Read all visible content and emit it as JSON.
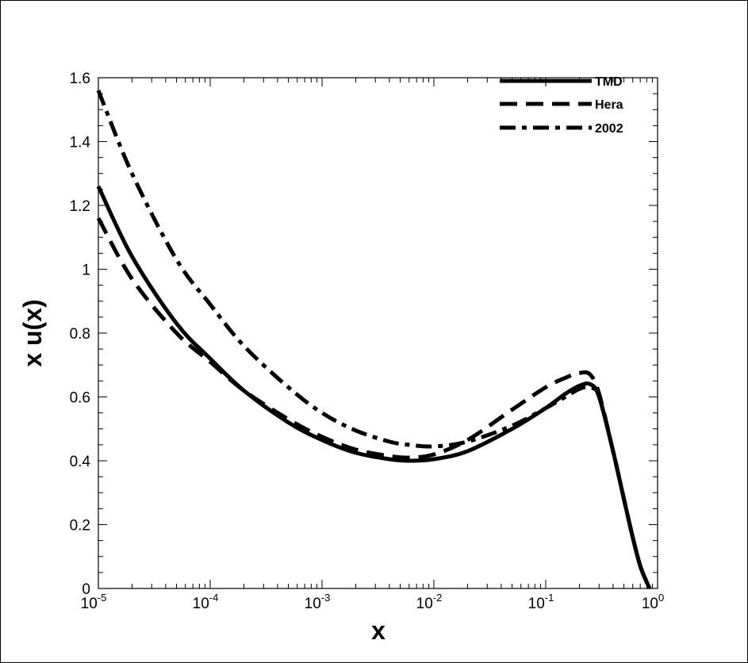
{
  "chart_data": {
    "type": "line",
    "xlabel": "x",
    "ylabel": "x u(x)",
    "x_scale": "log",
    "xlim": [
      1e-05,
      1
    ],
    "ylim": [
      0,
      1.6
    ],
    "x_ticks": [
      {
        "base": "10",
        "exp": "-5",
        "value": 1e-05
      },
      {
        "base": "10",
        "exp": "-4",
        "value": 0.0001
      },
      {
        "base": "10",
        "exp": "-3",
        "value": 0.001
      },
      {
        "base": "10",
        "exp": "-2",
        "value": 0.01
      },
      {
        "base": "10",
        "exp": "-1",
        "value": 0.1
      },
      {
        "base": "10",
        "exp": "0",
        "value": 1
      }
    ],
    "y_ticks": [
      {
        "label": "0",
        "value": 0
      },
      {
        "label": "0.2",
        "value": 0.2
      },
      {
        "label": "0.4",
        "value": 0.4
      },
      {
        "label": "0.6",
        "value": 0.6
      },
      {
        "label": "0.8",
        "value": 0.8
      },
      {
        "label": "1",
        "value": 1
      },
      {
        "label": "1.2",
        "value": 1.2
      },
      {
        "label": "1.4",
        "value": 1.4
      },
      {
        "label": "1.6",
        "value": 1.6
      }
    ],
    "grid": false,
    "legend_position": "top-right",
    "series": [
      {
        "name": "TMD",
        "style": "solid",
        "color": "#000000",
        "points": [
          [
            1e-05,
            1.26
          ],
          [
            2e-05,
            1.04
          ],
          [
            5e-05,
            0.83
          ],
          [
            0.0001,
            0.72
          ],
          [
            0.0002,
            0.62
          ],
          [
            0.0005,
            0.52
          ],
          [
            0.001,
            0.465
          ],
          [
            0.002,
            0.425
          ],
          [
            0.004,
            0.405
          ],
          [
            0.006,
            0.4
          ],
          [
            0.01,
            0.405
          ],
          [
            0.02,
            0.43
          ],
          [
            0.05,
            0.5
          ],
          [
            0.1,
            0.565
          ],
          [
            0.15,
            0.61
          ],
          [
            0.2,
            0.635
          ],
          [
            0.25,
            0.64
          ],
          [
            0.3,
            0.6
          ],
          [
            0.4,
            0.43
          ],
          [
            0.5,
            0.28
          ],
          [
            0.6,
            0.16
          ],
          [
            0.7,
            0.07
          ],
          [
            0.8,
            0.02
          ],
          [
            0.85,
            0.0
          ]
        ]
      },
      {
        "name": "Hera",
        "style": "dashed",
        "color": "#000000",
        "points": [
          [
            1e-05,
            1.16
          ],
          [
            2e-05,
            0.97
          ],
          [
            5e-05,
            0.8
          ],
          [
            0.0001,
            0.71
          ],
          [
            0.0002,
            0.62
          ],
          [
            0.0005,
            0.53
          ],
          [
            0.001,
            0.475
          ],
          [
            0.002,
            0.435
          ],
          [
            0.004,
            0.415
          ],
          [
            0.006,
            0.41
          ],
          [
            0.01,
            0.42
          ],
          [
            0.02,
            0.465
          ],
          [
            0.05,
            0.56
          ],
          [
            0.1,
            0.63
          ],
          [
            0.15,
            0.66
          ],
          [
            0.2,
            0.675
          ],
          [
            0.25,
            0.67
          ],
          [
            0.3,
            0.61
          ],
          [
            0.4,
            0.43
          ],
          [
            0.5,
            0.28
          ],
          [
            0.6,
            0.16
          ],
          [
            0.7,
            0.07
          ],
          [
            0.8,
            0.02
          ],
          [
            0.85,
            0.0
          ]
        ]
      },
      {
        "name": "2002",
        "style": "dashdot",
        "color": "#000000",
        "points": [
          [
            1e-05,
            1.56
          ],
          [
            2e-05,
            1.3
          ],
          [
            5e-05,
            1.03
          ],
          [
            0.0001,
            0.89
          ],
          [
            0.0002,
            0.76
          ],
          [
            0.0005,
            0.63
          ],
          [
            0.001,
            0.55
          ],
          [
            0.002,
            0.495
          ],
          [
            0.004,
            0.46
          ],
          [
            0.006,
            0.45
          ],
          [
            0.01,
            0.445
          ],
          [
            0.02,
            0.46
          ],
          [
            0.05,
            0.51
          ],
          [
            0.1,
            0.565
          ],
          [
            0.15,
            0.6
          ],
          [
            0.2,
            0.625
          ],
          [
            0.25,
            0.63
          ],
          [
            0.3,
            0.6
          ],
          [
            0.4,
            0.43
          ],
          [
            0.5,
            0.28
          ],
          [
            0.6,
            0.16
          ],
          [
            0.7,
            0.07
          ],
          [
            0.8,
            0.02
          ],
          [
            0.85,
            0.0
          ]
        ]
      }
    ]
  }
}
